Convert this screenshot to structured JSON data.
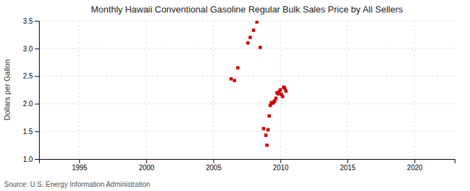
{
  "chart_data": {
    "type": "scatter",
    "title": "Monthly Hawaii Conventional Gasoline Regular Bulk Sales Price by All Sellers",
    "ylabel": "Dollars per Gallon",
    "annotations": [
      "Source: U.S. Energy Information Administration"
    ],
    "color": "#CC0000",
    "marker": "square",
    "grid": true,
    "xlim": [
      1992,
      2023
    ],
    "ylim": [
      1.0,
      3.5
    ],
    "xticks": [
      1995,
      2000,
      2005,
      2010,
      2015,
      2020
    ],
    "yticks": [
      {
        "value": 1.0,
        "label": "1.0"
      },
      1.5,
      {
        "value": 2.0,
        "label": "2.0"
      },
      2.5,
      {
        "value": 3.0,
        "label": "3.0"
      },
      3.5
    ],
    "x": [
      2006.33,
      2006.58,
      2006.83,
      2007.58,
      2007.75,
      2008.0,
      2008.25,
      2008.5,
      2008.75,
      2008.92,
      2009.0,
      2009.08,
      2009.17,
      2009.25,
      2009.33,
      2009.42,
      2009.5,
      2009.58,
      2009.67,
      2009.75,
      2009.83,
      2009.92,
      2010.0,
      2010.08,
      2010.17,
      2010.25,
      2010.33,
      2010.42
    ],
    "values": [
      2.45,
      2.42,
      2.65,
      3.1,
      3.2,
      3.33,
      3.48,
      3.02,
      1.55,
      1.43,
      1.25,
      1.53,
      1.78,
      1.97,
      2.02,
      2.01,
      2.03,
      2.05,
      2.1,
      2.2,
      2.18,
      2.22,
      2.25,
      2.17,
      2.13,
      2.3,
      2.28,
      2.23
    ]
  }
}
